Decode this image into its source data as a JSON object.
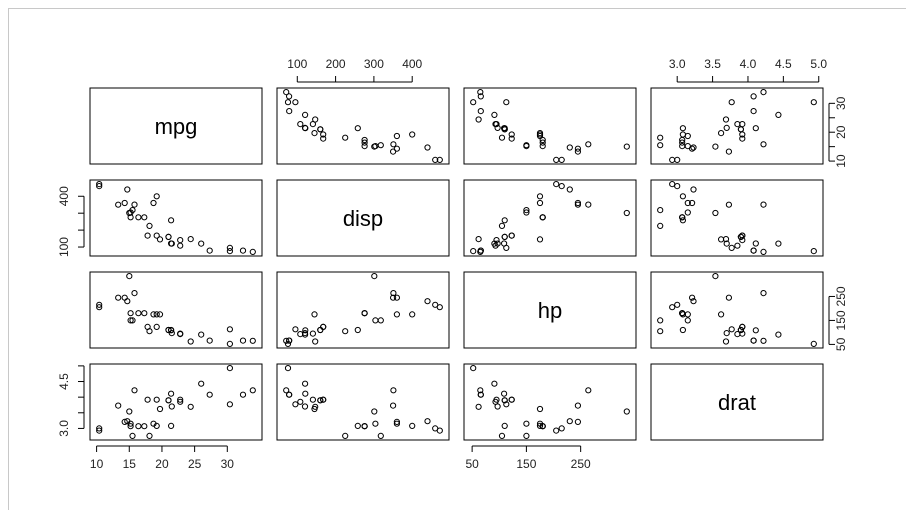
{
  "chart_data": {
    "type": "scatter",
    "variables": [
      "mpg",
      "disp",
      "hp",
      "drat"
    ],
    "ranges": {
      "mpg": [
        10.4,
        33.9
      ],
      "disp": [
        71.1,
        472
      ],
      "hp": [
        52,
        335
      ],
      "drat": [
        2.76,
        4.93
      ]
    },
    "ticks": {
      "mpg": [
        "10",
        "15",
        "20",
        "25",
        "30"
      ],
      "disp": [
        "100",
        "200",
        "300",
        "400"
      ],
      "hp": [
        "50",
        "150",
        "250"
      ],
      "drat": [
        "3.0",
        "3.5",
        "4.0",
        "4.5",
        "5.0"
      ]
    },
    "side_ticks": {
      "mpg": [
        "10",
        "20",
        "30"
      ],
      "disp": [
        "100",
        "400"
      ],
      "hp": [
        "50",
        "150",
        "250"
      ],
      "drat": [
        "3.0",
        "4.5"
      ]
    },
    "points": {
      "mpg": [
        21.0,
        21.0,
        22.8,
        21.4,
        18.7,
        18.1,
        14.3,
        24.4,
        22.8,
        19.2,
        17.8,
        16.4,
        17.3,
        15.2,
        10.4,
        10.4,
        14.7,
        32.4,
        30.4,
        33.9,
        21.5,
        15.5,
        15.2,
        13.3,
        19.2,
        27.3,
        26.0,
        30.4,
        15.8,
        19.7,
        15.0,
        21.4
      ],
      "disp": [
        160,
        160,
        108,
        258,
        360,
        225,
        360,
        146.7,
        140.8,
        167.6,
        167.6,
        275.8,
        275.8,
        275.8,
        472,
        460,
        440,
        78.7,
        75.7,
        71.1,
        120.1,
        318,
        304,
        350,
        400,
        79,
        120.3,
        95.1,
        351,
        145,
        301,
        121
      ],
      "hp": [
        110,
        110,
        93,
        110,
        175,
        105,
        245,
        62,
        95,
        123,
        123,
        180,
        180,
        180,
        205,
        215,
        230,
        66,
        52,
        65,
        97,
        150,
        150,
        245,
        175,
        66,
        91,
        113,
        264,
        175,
        335,
        109
      ],
      "drat": [
        3.9,
        3.9,
        3.85,
        3.08,
        3.15,
        2.76,
        3.21,
        3.69,
        3.92,
        3.92,
        3.92,
        3.07,
        3.07,
        3.07,
        2.93,
        3.0,
        3.23,
        4.08,
        4.93,
        4.22,
        3.7,
        2.76,
        3.15,
        3.73,
        3.08,
        4.08,
        4.43,
        3.77,
        4.22,
        3.62,
        3.54,
        4.11
      ]
    },
    "grid": false,
    "legend": "none"
  }
}
